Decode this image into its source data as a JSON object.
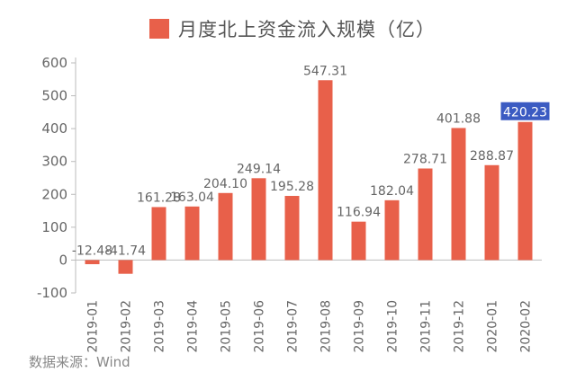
{
  "chart_data": {
    "type": "bar",
    "title": "",
    "series": [
      {
        "name": "月度北上资金流入规模（亿）",
        "values": [
          -12.48,
          -41.74,
          161.28,
          163.04,
          204.1,
          249.14,
          195.28,
          547.31,
          116.94,
          182.04,
          278.71,
          401.88,
          288.87,
          420.23
        ]
      }
    ],
    "categories": [
      "2019-01",
      "2019-02",
      "2019-03",
      "2019-04",
      "2019-05",
      "2019-06",
      "2019-07",
      "2019-08",
      "2019-09",
      "2019-10",
      "2019-11",
      "2019-12",
      "2020-01",
      "2020-02"
    ],
    "data_labels": [
      "-12.48",
      "-41.74",
      "161.28",
      "163.04",
      "204.10",
      "249.14",
      "195.28",
      "547.31",
      "116.94",
      "182.04",
      "278.71",
      "401.88",
      "288.87",
      "420.23"
    ],
    "highlight_index": 13,
    "y_ticks": [
      -100,
      0,
      100,
      200,
      300,
      400,
      500,
      600
    ],
    "ylim": [
      -100,
      600
    ],
    "xlabel": "",
    "ylabel": "",
    "grid": false,
    "legend_position": "top",
    "colors": {
      "bar": "#e8604a",
      "highlight_label_bg": "#3b5bc2",
      "highlight_label_text": "#ffffff",
      "axis": "#bbbbbb",
      "text": "#666666"
    }
  },
  "source_note": "数据来源：Wind"
}
